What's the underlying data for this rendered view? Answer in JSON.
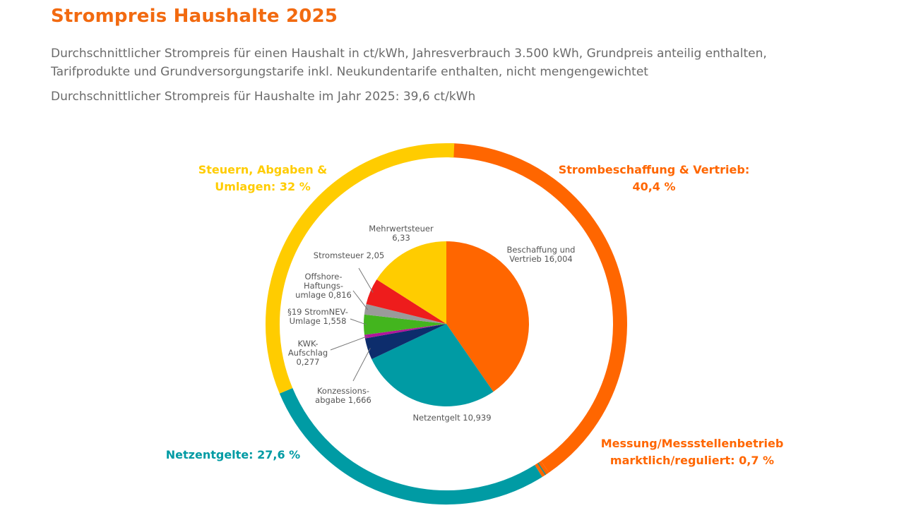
{
  "header": {
    "title": "Strompreis Haushalte 2025",
    "subtitle": "Durchschnittlicher Strompreis für einen Haushalt in ct/kWh, Jahresverbrauch 3.500 kWh, Grundpreis anteilig enthalten, Tarifprodukte und Grundversorgungstarife inkl. Neukundentarife enthalten, nicht mengengewichtet",
    "average": "Durchschnittlicher Strompreis für Haushalte im Jahr 2025: 39,6 ct/kWh"
  },
  "chart_data": {
    "type": "pie",
    "unit": "ct/kWh",
    "outer_ring": [
      {
        "key": "steuern",
        "label_lines": [
          "Steuern, Abgaben &",
          "Umlagen: 32 %"
        ],
        "percent": 32,
        "color": "#ffcc00"
      },
      {
        "key": "beschaffung",
        "label_lines": [
          "Strombeschaffung & Vertrieb:",
          "40,4 %"
        ],
        "percent": 40.4,
        "color": "#ff6600"
      },
      {
        "key": "messung",
        "label_lines": [
          "Messung/Messstellenbetrieb",
          "marktlich/reguliert: 0,7 %"
        ],
        "percent": 0.7,
        "color": "#ff6600"
      },
      {
        "key": "netz",
        "label_lines": [
          "Netzentgelte: 27,6 %"
        ],
        "percent": 27.6,
        "color": "#009ba4"
      }
    ],
    "inner_pie": [
      {
        "key": "beschaffung",
        "label_lines": [
          "Beschaffung und",
          "Vertrieb 16,004"
        ],
        "value": 16.004,
        "color": "#ff6600"
      },
      {
        "key": "netzentgelt",
        "label_lines": [
          "Netzentgelt 10,939"
        ],
        "value": 10.939,
        "color": "#009ba4"
      },
      {
        "key": "konzession",
        "label_lines": [
          "Konzessions-",
          "abgabe 1,666"
        ],
        "value": 1.666,
        "color": "#0d2d6c"
      },
      {
        "key": "kwk",
        "label_lines": [
          "KWK-",
          "Aufschlag",
          "0,277"
        ],
        "value": 0.277,
        "color": "#b0159b"
      },
      {
        "key": "stromnev",
        "label_lines": [
          "§19 StromNEV-",
          "Umlage 1,558"
        ],
        "value": 1.558,
        "color": "#43b51e"
      },
      {
        "key": "offshore",
        "label_lines": [
          "Offshore-",
          "Haftungs-",
          "umlage 0,816"
        ],
        "value": 0.816,
        "color": "#9a9a9a"
      },
      {
        "key": "stromsteuer",
        "label_lines": [
          "Stromsteuer 2,05"
        ],
        "value": 2.05,
        "color": "#ee1c1c"
      },
      {
        "key": "mwst",
        "label_lines": [
          "Mehrwertsteuer",
          "6,33"
        ],
        "value": 6.33,
        "color": "#ffcc00"
      }
    ]
  }
}
